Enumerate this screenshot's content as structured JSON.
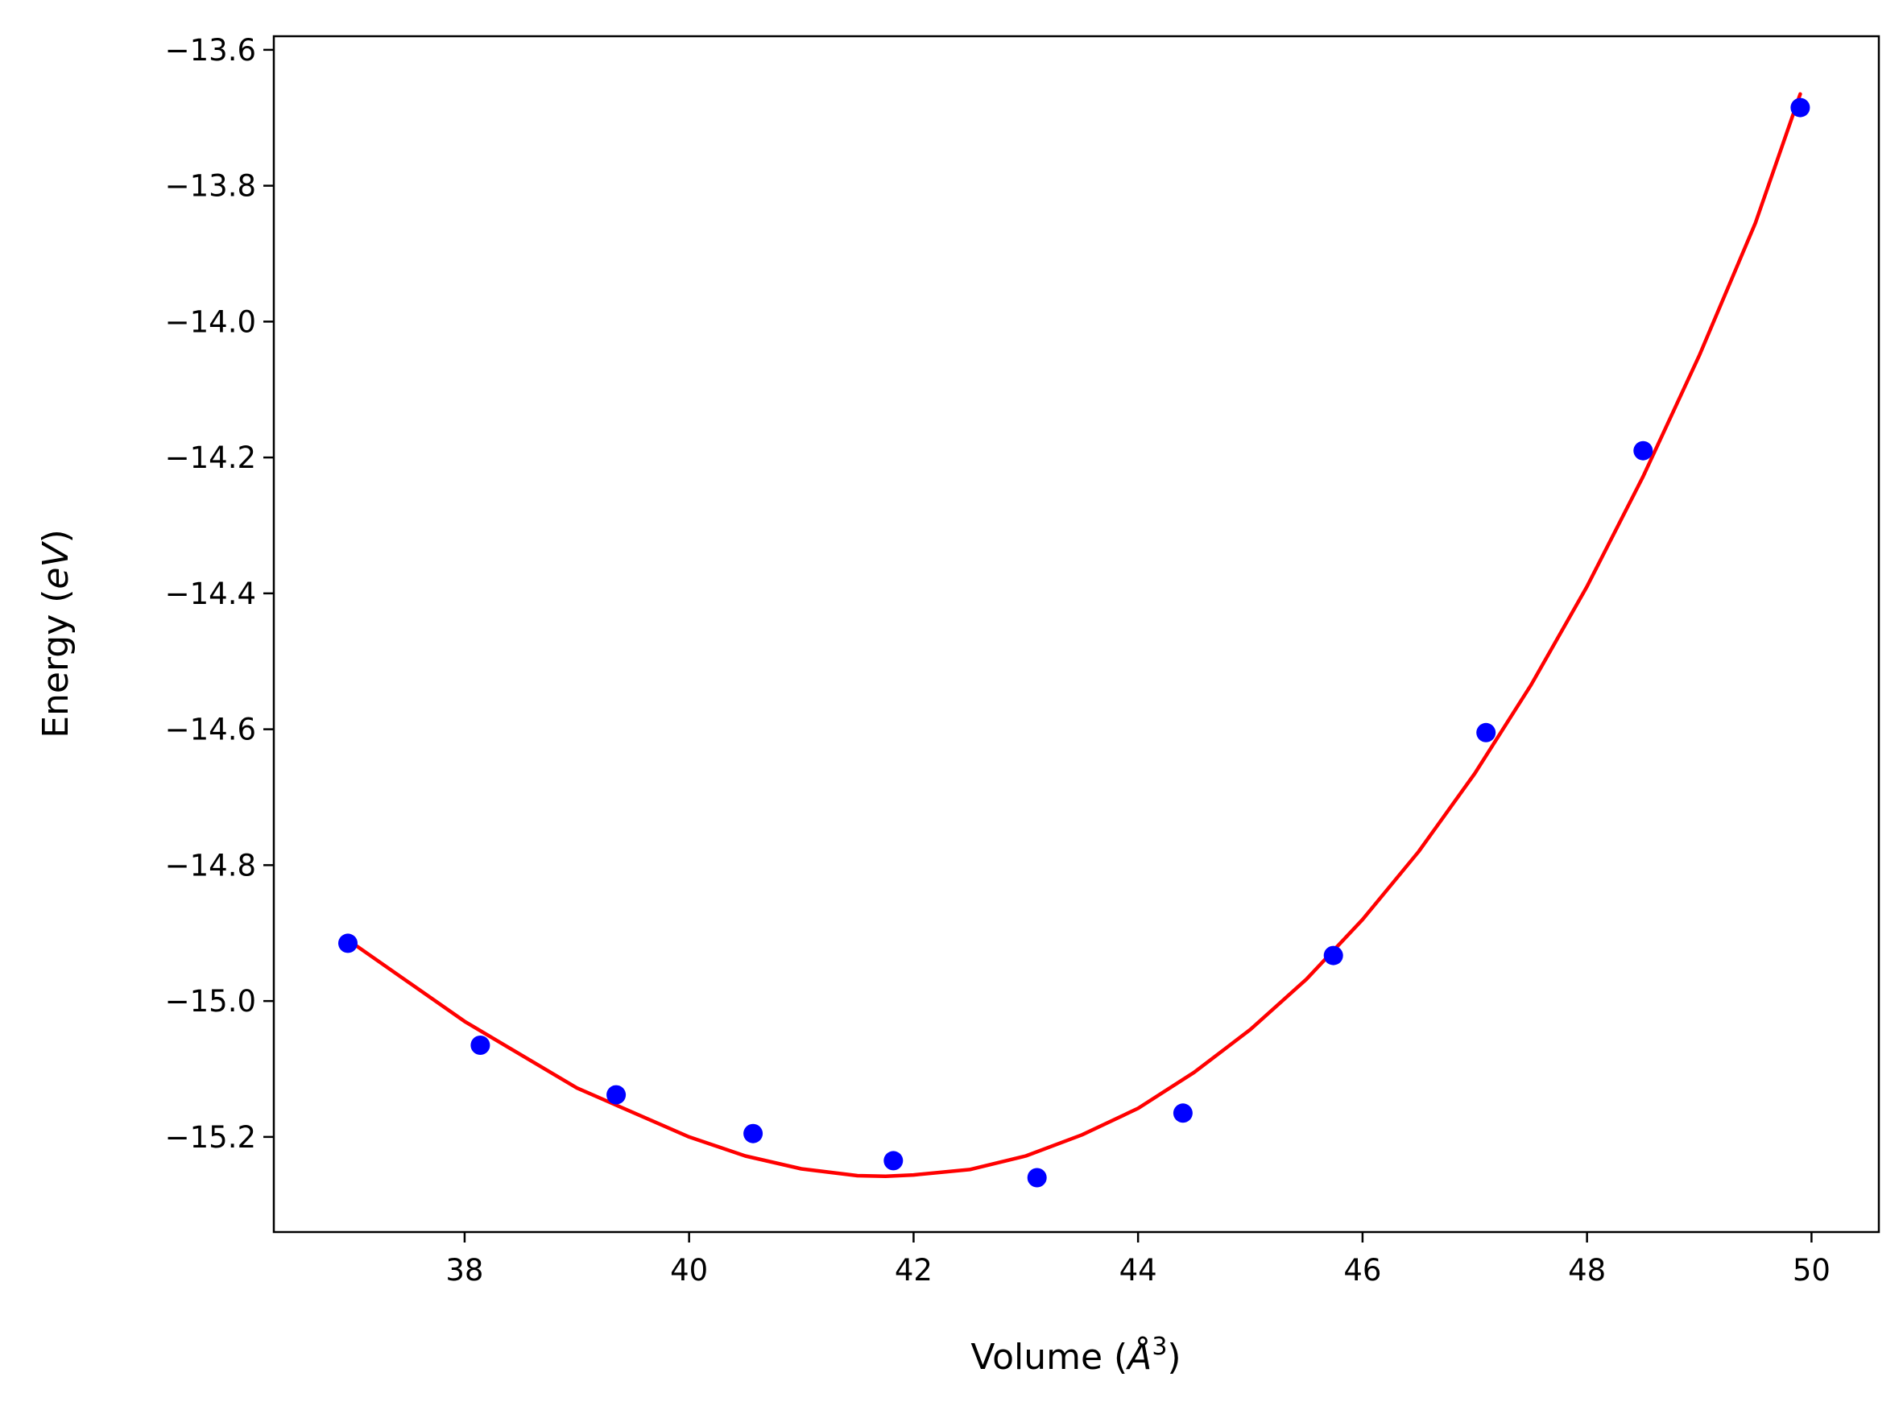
{
  "chart_data": {
    "type": "scatter",
    "xlabel_text": "Volume (",
    "xlabel_unit": "Å",
    "xlabel_sup": "3",
    "xlabel_close": ")",
    "ylabel_text": "Energy (",
    "ylabel_unit": "eV",
    "ylabel_close": ")",
    "xlim": [
      36.3,
      50.6
    ],
    "ylim": [
      -15.34,
      -13.58
    ],
    "xticks": [
      38,
      40,
      42,
      44,
      46,
      48,
      50
    ],
    "yticks": [
      -13.6,
      -13.8,
      -14.0,
      -14.2,
      -14.4,
      -14.6,
      -14.8,
      -15.0,
      -15.2
    ],
    "xtick_labels": [
      "38",
      "40",
      "42",
      "44",
      "46",
      "48",
      "50"
    ],
    "ytick_labels": [
      "−13.6",
      "−13.8",
      "−14.0",
      "−14.2",
      "−14.4",
      "−14.6",
      "−14.8",
      "−15.0",
      "−15.2"
    ],
    "grid": false,
    "series": [
      {
        "kind": "scatter",
        "color": "#0000ff",
        "x": [
          36.96,
          38.14,
          39.35,
          40.57,
          41.82,
          43.1,
          44.4,
          45.74,
          47.1,
          48.5,
          49.9
        ],
        "y": [
          -14.915,
          -15.065,
          -15.138,
          -15.195,
          -15.235,
          -15.26,
          -15.165,
          -14.933,
          -14.605,
          -14.19,
          -13.685
        ]
      },
      {
        "kind": "line",
        "color": "#ff0000",
        "x": [
          36.96,
          38.0,
          39.0,
          40.0,
          40.5,
          41.0,
          41.5,
          41.75,
          42.0,
          42.5,
          43.0,
          43.5,
          44.0,
          44.5,
          45.0,
          45.5,
          46.0,
          46.5,
          47.0,
          47.5,
          48.0,
          48.5,
          49.0,
          49.5,
          49.9
        ],
        "y": [
          -14.91,
          -15.03,
          -15.128,
          -15.2,
          -15.228,
          -15.247,
          -15.257,
          -15.258,
          -15.256,
          -15.248,
          -15.228,
          -15.197,
          -15.158,
          -15.105,
          -15.042,
          -14.968,
          -14.88,
          -14.78,
          -14.665,
          -14.535,
          -14.39,
          -14.228,
          -14.05,
          -13.855,
          -13.665
        ]
      }
    ]
  }
}
